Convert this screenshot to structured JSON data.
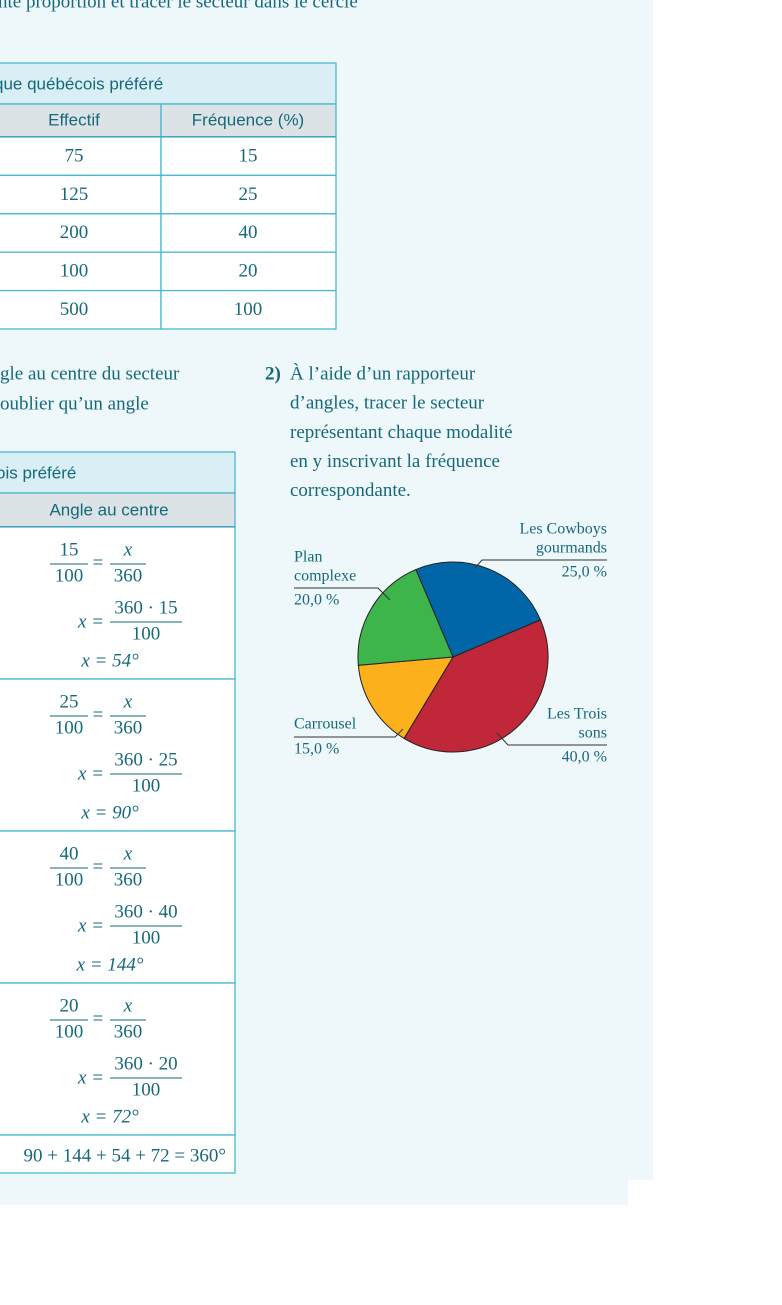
{
  "intro_line": "nte proportion et tracer le secteur dans le cercle",
  "table1": {
    "title": "que québécois préféré",
    "headers": [
      "Effectif",
      "Fréquence (%)"
    ],
    "rows": [
      [
        "75",
        "15"
      ],
      [
        "125",
        "25"
      ],
      [
        "200",
        "40"
      ],
      [
        "100",
        "20"
      ],
      [
        "500",
        "100"
      ]
    ]
  },
  "step1_lines": [
    "gle au centre du secteur",
    "oublier qu’un angle"
  ],
  "step2": {
    "number": "2)",
    "lines": [
      "À l’aide d’un rapporteur",
      "d’angles, tracer le secteur",
      "représentant chaque modalité",
      "en y inscrivant la fréquence",
      "correspondante."
    ]
  },
  "table2": {
    "title": "ois préféré",
    "header": "Angle au centre",
    "blocks": [
      {
        "num": "15",
        "den": "100",
        "equals": "=",
        "var": "x",
        "total": "360",
        "prefix": "x =",
        "product": "360 · 15",
        "divisor": "100",
        "result": "x = 54°"
      },
      {
        "num": "25",
        "den": "100",
        "equals": "=",
        "var": "x",
        "total": "360",
        "prefix": "x =",
        "product": "360 · 25",
        "divisor": "100",
        "result": "x = 90°"
      },
      {
        "num": "40",
        "den": "100",
        "equals": "=",
        "var": "x",
        "total": "360",
        "prefix": "x =",
        "product": "360 · 40",
        "divisor": "100",
        "result": "x = 144°"
      },
      {
        "num": "20",
        "den": "100",
        "equals": "=",
        "var": "x",
        "total": "360",
        "prefix": "x =",
        "product": "360 · 20",
        "divisor": "100",
        "result": "x = 72°"
      }
    ],
    "total": "90 + 144 + 54 + 72 = 360°"
  },
  "chart_data": {
    "type": "pie",
    "categories": [
      [
        "Les Cowboys",
        "gourmands"
      ],
      [
        "Les Trois",
        "sons"
      ],
      [
        "Carrousel"
      ],
      [
        "Plan",
        "complexe"
      ]
    ],
    "values": [
      25,
      40,
      15,
      20
    ],
    "value_labels": [
      "25,0 %",
      "40,0 %",
      "15,0 %",
      "20,0 %"
    ],
    "colors": [
      "#0066a8",
      "#c0283a",
      "#fbb01c",
      "#3db54a"
    ]
  }
}
